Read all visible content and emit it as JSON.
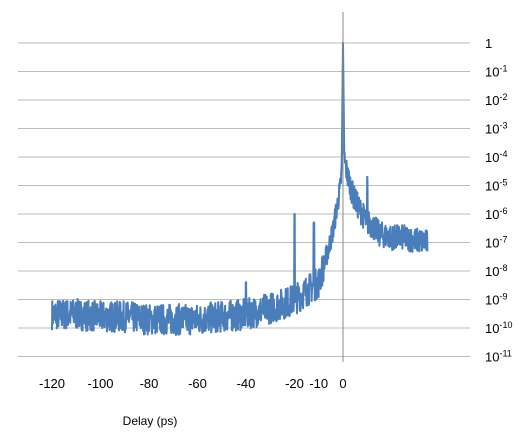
{
  "chart_data": {
    "type": "line",
    "title": "",
    "xlabel": "Delay (ps)",
    "ylabel": "",
    "y_scale": "log",
    "ylim": [
      1e-11,
      1
    ],
    "xlim": [
      -125,
      40
    ],
    "grid": "horizontal",
    "legend": "none",
    "x_tick_labels": [
      "-120",
      "-100",
      "-80",
      "-60",
      "-40",
      "-20",
      "-10",
      "0"
    ],
    "x_tick_values": [
      -120,
      -100,
      -80,
      -60,
      -40,
      -20,
      -10,
      0
    ],
    "y_tick_labels": [
      {
        "base": "1",
        "exp": ""
      },
      {
        "base": "10",
        "exp": "-1"
      },
      {
        "base": "10",
        "exp": "-2"
      },
      {
        "base": "10",
        "exp": "-3"
      },
      {
        "base": "10",
        "exp": "-4"
      },
      {
        "base": "10",
        "exp": "-5"
      },
      {
        "base": "10",
        "exp": "-6"
      },
      {
        "base": "10",
        "exp": "-7"
      },
      {
        "base": "10",
        "exp": "-8"
      },
      {
        "base": "10",
        "exp": "-9"
      },
      {
        "base": "10",
        "exp": "-10"
      },
      {
        "base": "10",
        "exp": "-11"
      }
    ],
    "y_tick_values": [
      1,
      0.1,
      0.01,
      0.001,
      0.0001,
      1e-05,
      1e-06,
      1e-07,
      1e-08,
      1e-09,
      1e-10,
      1e-11
    ],
    "series": [
      {
        "color": "#4a7ebb",
        "x": [
          -120,
          -110,
          -100,
          -90,
          -80,
          -70,
          -60,
          -50,
          -40,
          -30,
          -25,
          -20,
          -15,
          -10,
          -8,
          -6,
          -4,
          -3,
          -2,
          -1,
          -0.5,
          0,
          0.5,
          1,
          2,
          4,
          6,
          8,
          10,
          12,
          15,
          20,
          25,
          30,
          35
        ],
        "y": [
          3e-10,
          3e-10,
          2.5e-10,
          2.5e-10,
          2e-10,
          2e-10,
          2e-10,
          2.5e-10,
          3e-10,
          5e-10,
          7e-10,
          1e-09,
          2e-09,
          4e-09,
          1.5e-08,
          6e-08,
          3e-07,
          1e-06,
          3e-06,
          1e-05,
          5e-05,
          1,
          0.0001,
          5e-05,
          2e-05,
          5e-06,
          2e-06,
          1e-06,
          5e-07,
          4e-07,
          2e-07,
          1.5e-07,
          1.5e-07,
          1.2e-07,
          1e-07
        ]
      }
    ],
    "spikes": [
      {
        "x": -20,
        "y": 1e-06
      },
      {
        "x": -12,
        "y": 5e-07
      },
      {
        "x": 10,
        "y": 2e-05
      },
      {
        "x": -40,
        "y": 4e-09
      }
    ]
  }
}
